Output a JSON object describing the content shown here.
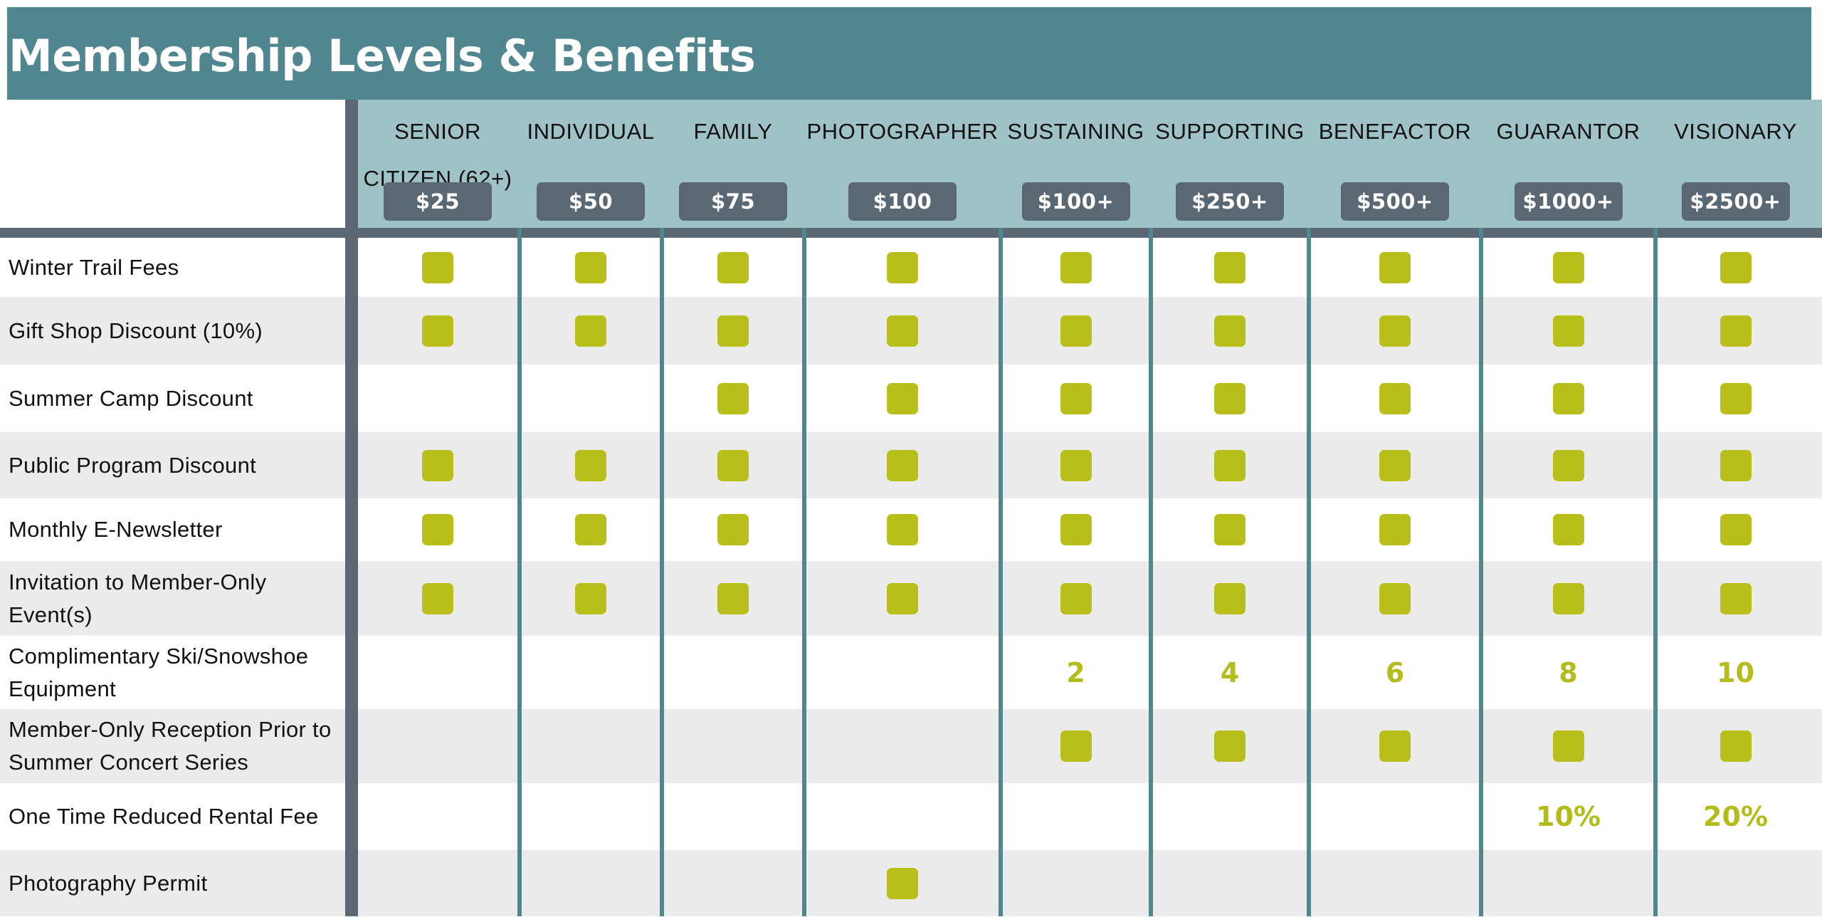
{
  "title": "Membership Levels & Benefits",
  "colors": {
    "header": "#4f8690",
    "tier_header": "#9fc2c7",
    "price_badge": "#5a6873",
    "check": "#b8bf1a",
    "alt_row": "#ebebeb"
  },
  "tiers": [
    {
      "name": "SENIOR CITIZEN (62+)",
      "price": "$25"
    },
    {
      "name": "INDIVIDUAL",
      "price": "$50"
    },
    {
      "name": "FAMILY",
      "price": "$75"
    },
    {
      "name": "PHOTOGRAPHER",
      "price": "$100"
    },
    {
      "name": "SUSTAINING",
      "price": "$100+"
    },
    {
      "name": "SUPPORTING",
      "price": "$250+"
    },
    {
      "name": "BENEFACTOR",
      "price": "$500+"
    },
    {
      "name": "GUARANTOR",
      "price": "$1000+"
    },
    {
      "name": "VISIONARY",
      "price": "$2500+"
    }
  ],
  "benefits": [
    {
      "label": "Winter Trail Fees",
      "values": [
        "check",
        "check",
        "check",
        "check",
        "check",
        "check",
        "check",
        "check",
        "check"
      ]
    },
    {
      "label": "Gift Shop Discount (10%)",
      "values": [
        "check",
        "check",
        "check",
        "check",
        "check",
        "check",
        "check",
        "check",
        "check"
      ]
    },
    {
      "label": "Summer Camp Discount",
      "values": [
        "",
        "",
        "check",
        "check",
        "check",
        "check",
        "check",
        "check",
        "check"
      ]
    },
    {
      "label": "Public Program Discount",
      "values": [
        "check",
        "check",
        "check",
        "check",
        "check",
        "check",
        "check",
        "check",
        "check"
      ]
    },
    {
      "label": "Monthly E-Newsletter",
      "values": [
        "check",
        "check",
        "check",
        "check",
        "check",
        "check",
        "check",
        "check",
        "check"
      ]
    },
    {
      "label": "Invitation to Member-Only Event(s)",
      "values": [
        "check",
        "check",
        "check",
        "check",
        "check",
        "check",
        "check",
        "check",
        "check"
      ]
    },
    {
      "label": "Complimentary Ski/Snowshoe Equipment",
      "values": [
        "",
        "",
        "",
        "",
        "2",
        "4",
        "6",
        "8",
        "10"
      ]
    },
    {
      "label": "Member-Only Reception Prior to Summer Concert Series",
      "values": [
        "",
        "",
        "",
        "",
        "check",
        "check",
        "check",
        "check",
        "check"
      ]
    },
    {
      "label": "One Time Reduced Rental Fee",
      "values": [
        "",
        "",
        "",
        "",
        "",
        "",
        "",
        "10%",
        "20%"
      ]
    },
    {
      "label": "Photography Permit",
      "values": [
        "",
        "",
        "",
        "check",
        "",
        "",
        "",
        "",
        ""
      ]
    }
  ]
}
